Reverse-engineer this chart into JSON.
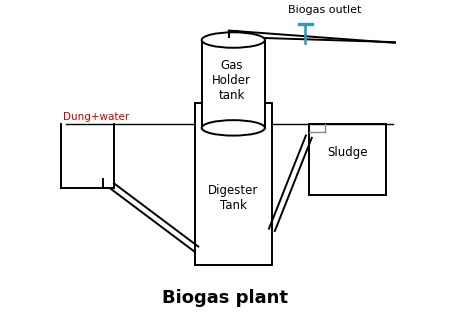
{
  "title": "Biogas plant",
  "title_fontsize": 13,
  "title_fontweight": "bold",
  "bg_color": "#ffffff",
  "line_color": "#000000",
  "label_dung": "Dung+water",
  "label_gas_holder": "Gas\nHolder\ntank",
  "label_digester": "Digester\nTank",
  "label_sludge": "Sludge",
  "label_biogas": "Biogas outlet",
  "label_color_dung": "#cc0000",
  "figsize": [
    4.49,
    3.19
  ],
  "dpi": 100,
  "xlim": [
    0,
    10
  ],
  "ylim": [
    0,
    9
  ]
}
